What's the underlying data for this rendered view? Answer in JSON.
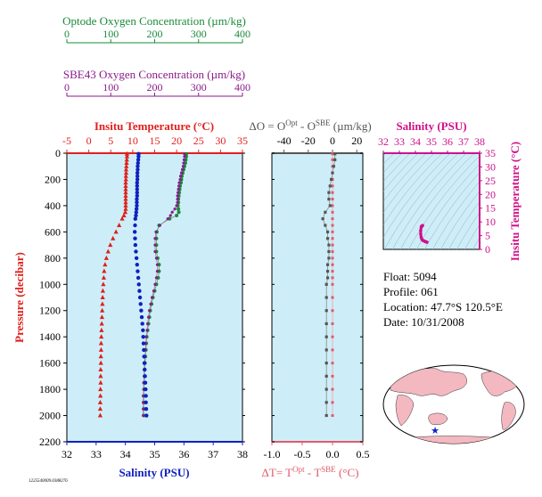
{
  "optode_axis": {
    "title": "Optode Oxygen Concentration (µm/kg)",
    "ticks": [
      "0",
      "100",
      "200",
      "300",
      "400"
    ],
    "color": "#1a8a3a"
  },
  "sbe_axis": {
    "title": "SBE43 Oxygen Concentration (µm/kg)",
    "ticks": [
      "0",
      "100",
      "200",
      "300",
      "400"
    ],
    "color": "#8b1a8b"
  },
  "main_panel": {
    "top_title": "Insitu Temperature (°C)",
    "top_ticks": [
      "-5",
      "0",
      "5",
      "10",
      "15",
      "20",
      "25",
      "30",
      "35"
    ],
    "bottom_title": "Salinity (PSU)",
    "bottom_ticks": [
      "32",
      "33",
      "34",
      "35",
      "36",
      "37",
      "38"
    ],
    "left_title": "Pressure (decibar)",
    "left_ticks": [
      "0",
      "200",
      "400",
      "600",
      "800",
      "1000",
      "1200",
      "1400",
      "1600",
      "1800",
      "2000",
      "2200"
    ],
    "bg_color": "#cdeef8"
  },
  "diff_panel": {
    "top_title_parts": [
      "ΔO = O",
      "Opt",
      " - O",
      "SBE",
      " (µm/kg)"
    ],
    "top_ticks": [
      "-40",
      "-20",
      "0",
      "20"
    ],
    "bottom_title_parts": [
      "ΔT= T",
      "Opt",
      " - T",
      "SBE",
      " (°C)"
    ],
    "bottom_ticks": [
      "-1.0",
      "-0.5",
      "0.0",
      "0.5"
    ]
  },
  "ts_panel": {
    "top_title": "Salinity (PSU)",
    "top_ticks": [
      "32",
      "33",
      "34",
      "35",
      "36",
      "37",
      "38"
    ],
    "right_title": "Insitu Temperature (°C)",
    "right_ticks": [
      "0",
      "5",
      "10",
      "15",
      "20",
      "25",
      "30",
      "35"
    ],
    "color": "#d0108a"
  },
  "info": {
    "float": "Float:  5094",
    "profile": "Profile:  061",
    "location": "Location:  47.7°S  120.5°E",
    "date": "Date:  10/31/2008"
  },
  "footer_id": "1225540009.0388276",
  "colors": {
    "temperature": "#e0201c",
    "salinity": "#1020c0",
    "optode": "#1a8a3a",
    "sbe": "#8b1a8b",
    "delta_o": "#555555",
    "delta_t": "#e05a6a",
    "land": "#f4b8c0",
    "ocean": "#cdeef8"
  },
  "chart_data": [
    {
      "type": "scatter",
      "name": "profile",
      "ylabel": "Pressure (decibar)",
      "ylim": [
        2200,
        0
      ],
      "temperature_xlim": [
        -5,
        35
      ],
      "salinity_xlim": [
        32,
        38
      ],
      "oxygen_xlim": [
        0,
        400
      ],
      "pressure": [
        5,
        25,
        50,
        75,
        100,
        125,
        150,
        175,
        200,
        225,
        250,
        275,
        300,
        325,
        350,
        375,
        400,
        425,
        450,
        475,
        500,
        550,
        600,
        650,
        700,
        750,
        800,
        850,
        900,
        950,
        1000,
        1050,
        1100,
        1150,
        1200,
        1250,
        1300,
        1350,
        1400,
        1450,
        1500,
        1550,
        1600,
        1650,
        1700,
        1750,
        1800,
        1850,
        1900,
        1950,
        2000
      ],
      "series": [
        {
          "name": "Temperature",
          "values": [
            8.7,
            8.7,
            8.65,
            8.6,
            8.55,
            8.5,
            8.5,
            8.45,
            8.45,
            8.4,
            8.4,
            8.4,
            8.4,
            8.4,
            8.4,
            8.4,
            8.4,
            8.4,
            8.3,
            8.0,
            7.6,
            6.9,
            6.2,
            5.5,
            4.9,
            4.4,
            4.0,
            3.7,
            3.5,
            3.4,
            3.3,
            3.2,
            3.15,
            3.1,
            3.05,
            3.0,
            2.95,
            2.9,
            2.85,
            2.8,
            2.8,
            2.75,
            2.75,
            2.7,
            2.7,
            2.7,
            2.65,
            2.65,
            2.6,
            2.6,
            2.6
          ]
        },
        {
          "name": "Salinity",
          "values": [
            34.45,
            34.45,
            34.44,
            34.43,
            34.42,
            34.42,
            34.41,
            34.41,
            34.41,
            34.4,
            34.4,
            34.4,
            34.4,
            34.4,
            34.39,
            34.39,
            34.39,
            34.38,
            34.37,
            34.36,
            34.34,
            34.33,
            34.32,
            34.33,
            34.34,
            34.36,
            34.38,
            34.4,
            34.42,
            34.44,
            34.46,
            34.48,
            34.5,
            34.52,
            34.54,
            34.56,
            34.58,
            34.6,
            34.61,
            34.62,
            34.63,
            34.64,
            34.65,
            34.66,
            34.67,
            34.68,
            34.69,
            34.7,
            34.7,
            34.71,
            34.72
          ]
        },
        {
          "name": "Optode Oxygen",
          "values": [
            272,
            272,
            271,
            270,
            268,
            266,
            264,
            262,
            261,
            260,
            258,
            257,
            256,
            255,
            254,
            254,
            253,
            254,
            255,
            250,
            234,
            210,
            205,
            204,
            204,
            204,
            207,
            210,
            210,
            208,
            204,
            200,
            196,
            193,
            190,
            188,
            186,
            184,
            182,
            181,
            180,
            179,
            178,
            177,
            177,
            176,
            176,
            175,
            175,
            175,
            175
          ]
        },
        {
          "name": "SBE43 Oxygen",
          "values": [
            268,
            268,
            267,
            266,
            265,
            263,
            261,
            259,
            258,
            256,
            255,
            254,
            253,
            252,
            252,
            252,
            250,
            246,
            240,
            236,
            230,
            212,
            203,
            201,
            201,
            201,
            204,
            206,
            206,
            204,
            201,
            198,
            194,
            191,
            188,
            186,
            184,
            183,
            181,
            180,
            179,
            178,
            177,
            176,
            176,
            175,
            175,
            174,
            174,
            174,
            174
          ]
        }
      ]
    },
    {
      "type": "scatter",
      "name": "differences",
      "ylim": [
        2200,
        0
      ],
      "delta_o_xlim": [
        -50,
        25
      ],
      "delta_t_xlim": [
        -1.0,
        0.5
      ],
      "pressure": [
        5,
        50,
        100,
        150,
        200,
        250,
        300,
        350,
        400,
        450,
        500,
        550,
        600,
        650,
        700,
        750,
        800,
        850,
        900,
        950,
        1000,
        1100,
        1200,
        1300,
        1400,
        1500,
        1600,
        1700,
        1800,
        1900,
        2000
      ],
      "series": [
        {
          "name": "ΔO",
          "values": [
            2,
            2,
            1,
            0,
            -1,
            -2,
            -3,
            -3,
            -2,
            -6,
            -8,
            -6,
            -4,
            -4,
            -3,
            -3,
            -3,
            -4,
            -4,
            -4,
            -5,
            -5,
            -5,
            -5,
            -5,
            -5,
            -5,
            -5,
            -5,
            -5,
            -5
          ]
        },
        {
          "name": "ΔT",
          "values": [
            0.0,
            0.0,
            0.0,
            0.0,
            0.0,
            0.0,
            0.0,
            0.0,
            0.0,
            0.0,
            0.0,
            0.0,
            0.0,
            0.0,
            0.0,
            0.0,
            0.0,
            0.0,
            0.0,
            0.0,
            0.0,
            0.0,
            0.0,
            0.0,
            0.0,
            0.0,
            0.0,
            0.0,
            0.0,
            0.0,
            0.0
          ]
        }
      ]
    },
    {
      "type": "line",
      "name": "ts_diagram",
      "xlabel": "Salinity (PSU)",
      "ylabel": "Insitu Temperature (°C)",
      "xlim": [
        32,
        38
      ],
      "ylim": [
        0,
        35
      ],
      "series": [
        {
          "name": "T-S",
          "x": [
            34.45,
            34.42,
            34.4,
            34.38,
            34.36,
            34.33,
            34.33,
            34.36,
            34.4,
            34.46,
            34.52,
            34.58,
            34.63,
            34.67,
            34.7,
            34.72
          ],
          "y": [
            8.7,
            8.55,
            8.45,
            8.4,
            8.0,
            6.9,
            5.5,
            4.4,
            3.7,
            3.3,
            3.1,
            2.95,
            2.8,
            2.7,
            2.65,
            2.6
          ]
        }
      ]
    }
  ]
}
